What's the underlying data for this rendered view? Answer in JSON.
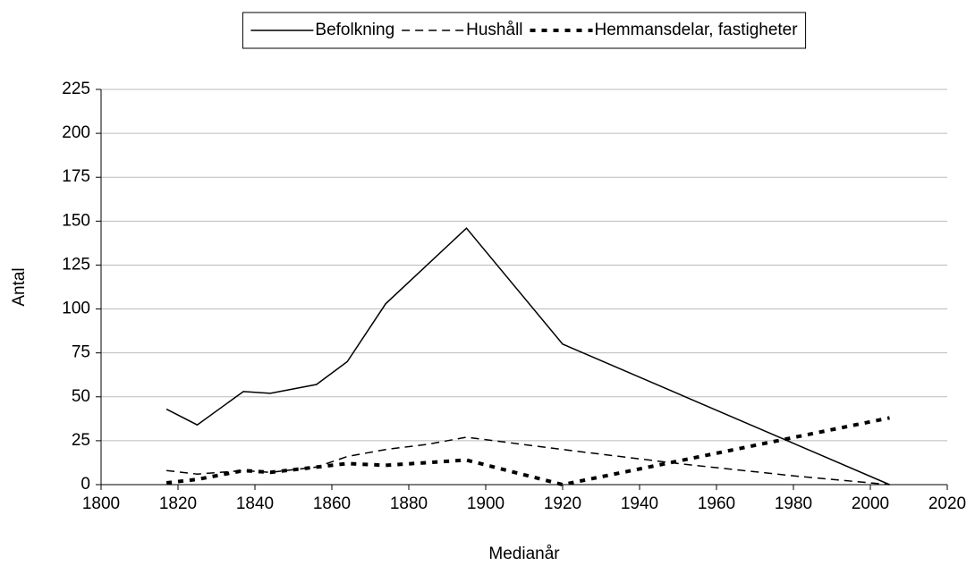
{
  "chart_data": {
    "type": "line",
    "xlabel": "Medianår",
    "ylabel": "Antal",
    "xlim": [
      1800,
      2020
    ],
    "xticks": [
      1800,
      1820,
      1840,
      1860,
      1880,
      1900,
      1920,
      1940,
      1960,
      1980,
      2000,
      2020
    ],
    "ylim": [
      0,
      225
    ],
    "yticks": [
      0,
      25,
      50,
      75,
      100,
      125,
      150,
      175,
      200,
      225
    ],
    "grid": true,
    "legend": "top",
    "series": [
      {
        "name": "Befolkning",
        "color": "#000000",
        "style": "solid",
        "x": [
          1817,
          1825,
          1837,
          1844,
          1856,
          1864,
          1874,
          1895,
          1920,
          2005
        ],
        "values": [
          43,
          34,
          53,
          52,
          57,
          70,
          103,
          146,
          80,
          0
        ]
      },
      {
        "name": "Hushåll",
        "color": "#000000",
        "style": "dashed",
        "x": [
          1817,
          1825,
          1837,
          1844,
          1856,
          1864,
          1874,
          1885,
          1895,
          1920,
          1950,
          1980,
          2005
        ],
        "values": [
          8,
          6,
          8,
          7,
          10,
          16,
          20,
          23,
          27,
          20,
          12,
          5,
          0
        ]
      },
      {
        "name": "Hemmansdelar, fastigheter",
        "color": "#000000",
        "style": "dotted",
        "x": [
          1817,
          1825,
          1837,
          1844,
          1856,
          1864,
          1874,
          1895,
          1920,
          2005
        ],
        "values": [
          1,
          3,
          8,
          7,
          10,
          12,
          11,
          14,
          0,
          38
        ]
      }
    ]
  }
}
